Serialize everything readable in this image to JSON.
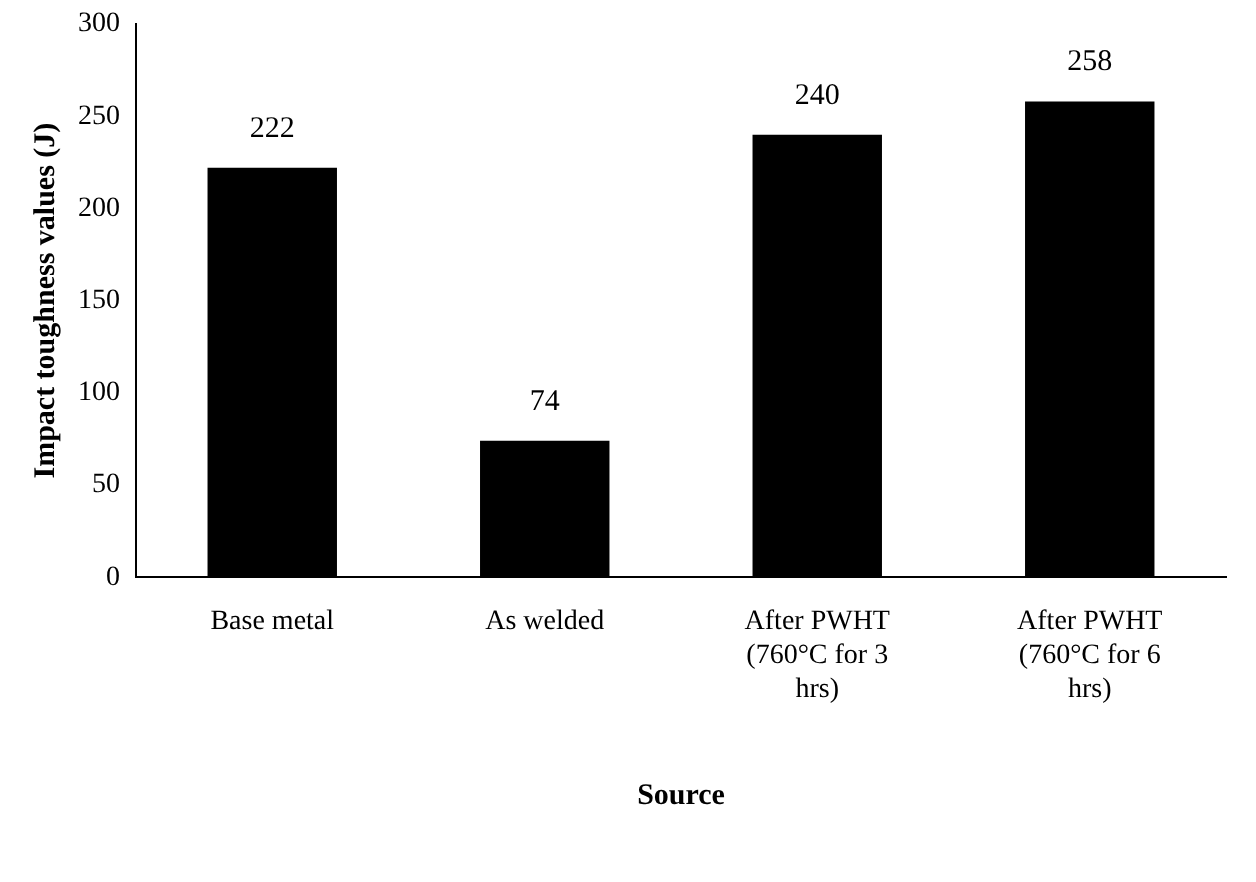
{
  "chart_data": {
    "type": "bar",
    "categories": [
      "Base metal",
      "As welded",
      "After PWHT (760°C for 3 hrs)",
      "After PWHT (760°C for 6 hrs)"
    ],
    "values": [
      222,
      74,
      240,
      258
    ],
    "color": "#000000",
    "xlabel": "Source",
    "ylabel": "Impact toughness values (J)",
    "ylim": [
      0,
      300
    ],
    "yticks": [
      0,
      50,
      100,
      150,
      200,
      250,
      300
    ],
    "data_labels": true,
    "grid": false,
    "legend": false
  }
}
